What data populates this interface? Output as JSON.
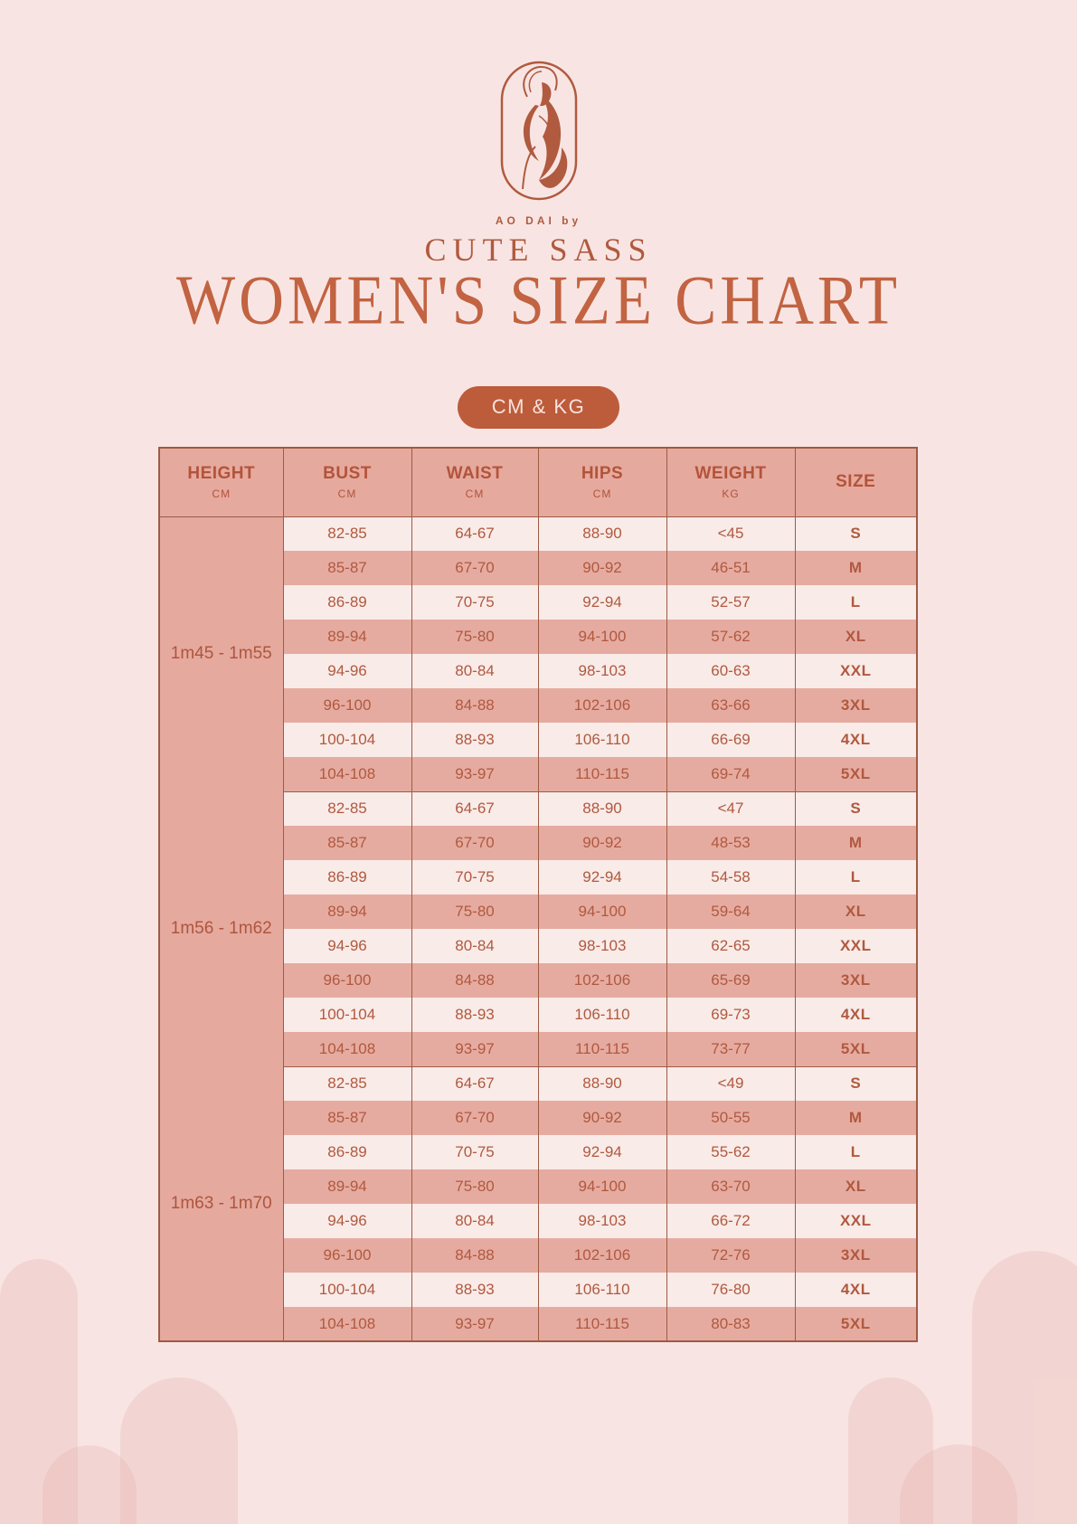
{
  "brand": {
    "logo_icon": "ao-dai-woman-logo",
    "tagline": "AO DAI by",
    "name": "CUTE SASS"
  },
  "title": "WOMEN'S SIZE CHART",
  "badge": {
    "label": "CM & KG"
  },
  "colors": {
    "background": "#f8e5e3",
    "accent_rust": "#b0593f",
    "title_rust": "#c26341",
    "badge_bg": "#bc5c3b",
    "badge_text": "#f8e2dc",
    "table_header_bg": "#e6a99e",
    "row_light": "#f9ebe8",
    "row_dark": "#e6aba0",
    "table_border": "#9e5b45",
    "arch_decoration": "rgba(224,158,148,0.22)"
  },
  "table": {
    "columns": [
      {
        "label": "HEIGHT",
        "unit": "CM"
      },
      {
        "label": "BUST",
        "unit": "CM"
      },
      {
        "label": "WAIST",
        "unit": "CM"
      },
      {
        "label": "HIPS",
        "unit": "CM"
      },
      {
        "label": "WEIGHT",
        "unit": "KG"
      },
      {
        "label": "SIZE",
        "unit": ""
      }
    ],
    "groups": [
      {
        "height_range": "1m45 - 1m55",
        "rows": [
          {
            "bust": "82-85",
            "waist": "64-67",
            "hips": "88-90",
            "weight": "<45",
            "size": "S"
          },
          {
            "bust": "85-87",
            "waist": "67-70",
            "hips": "90-92",
            "weight": "46-51",
            "size": "M"
          },
          {
            "bust": "86-89",
            "waist": "70-75",
            "hips": "92-94",
            "weight": "52-57",
            "size": "L"
          },
          {
            "bust": "89-94",
            "waist": "75-80",
            "hips": "94-100",
            "weight": "57-62",
            "size": "XL"
          },
          {
            "bust": "94-96",
            "waist": "80-84",
            "hips": "98-103",
            "weight": "60-63",
            "size": "XXL"
          },
          {
            "bust": "96-100",
            "waist": "84-88",
            "hips": "102-106",
            "weight": "63-66",
            "size": "3XL"
          },
          {
            "bust": "100-104",
            "waist": "88-93",
            "hips": "106-110",
            "weight": "66-69",
            "size": "4XL"
          },
          {
            "bust": "104-108",
            "waist": "93-97",
            "hips": "110-115",
            "weight": "69-74",
            "size": "5XL"
          }
        ]
      },
      {
        "height_range": "1m56 - 1m62",
        "rows": [
          {
            "bust": "82-85",
            "waist": "64-67",
            "hips": "88-90",
            "weight": "<47",
            "size": "S"
          },
          {
            "bust": "85-87",
            "waist": "67-70",
            "hips": "90-92",
            "weight": "48-53",
            "size": "M"
          },
          {
            "bust": "86-89",
            "waist": "70-75",
            "hips": "92-94",
            "weight": "54-58",
            "size": "L"
          },
          {
            "bust": "89-94",
            "waist": "75-80",
            "hips": "94-100",
            "weight": "59-64",
            "size": "XL"
          },
          {
            "bust": "94-96",
            "waist": "80-84",
            "hips": "98-103",
            "weight": "62-65",
            "size": "XXL"
          },
          {
            "bust": "96-100",
            "waist": "84-88",
            "hips": "102-106",
            "weight": "65-69",
            "size": "3XL"
          },
          {
            "bust": "100-104",
            "waist": "88-93",
            "hips": "106-110",
            "weight": "69-73",
            "size": "4XL"
          },
          {
            "bust": "104-108",
            "waist": "93-97",
            "hips": "110-115",
            "weight": "73-77",
            "size": "5XL"
          }
        ]
      },
      {
        "height_range": "1m63 - 1m70",
        "rows": [
          {
            "bust": "82-85",
            "waist": "64-67",
            "hips": "88-90",
            "weight": "<49",
            "size": "S"
          },
          {
            "bust": "85-87",
            "waist": "67-70",
            "hips": "90-92",
            "weight": "50-55",
            "size": "M"
          },
          {
            "bust": "86-89",
            "waist": "70-75",
            "hips": "92-94",
            "weight": "55-62",
            "size": "L"
          },
          {
            "bust": "89-94",
            "waist": "75-80",
            "hips": "94-100",
            "weight": "63-70",
            "size": "XL"
          },
          {
            "bust": "94-96",
            "waist": "80-84",
            "hips": "98-103",
            "weight": "66-72",
            "size": "XXL"
          },
          {
            "bust": "96-100",
            "waist": "84-88",
            "hips": "102-106",
            "weight": "72-76",
            "size": "3XL"
          },
          {
            "bust": "100-104",
            "waist": "88-93",
            "hips": "106-110",
            "weight": "76-80",
            "size": "4XL"
          },
          {
            "bust": "104-108",
            "waist": "93-97",
            "hips": "110-115",
            "weight": "80-83",
            "size": "5XL"
          }
        ]
      }
    ]
  }
}
